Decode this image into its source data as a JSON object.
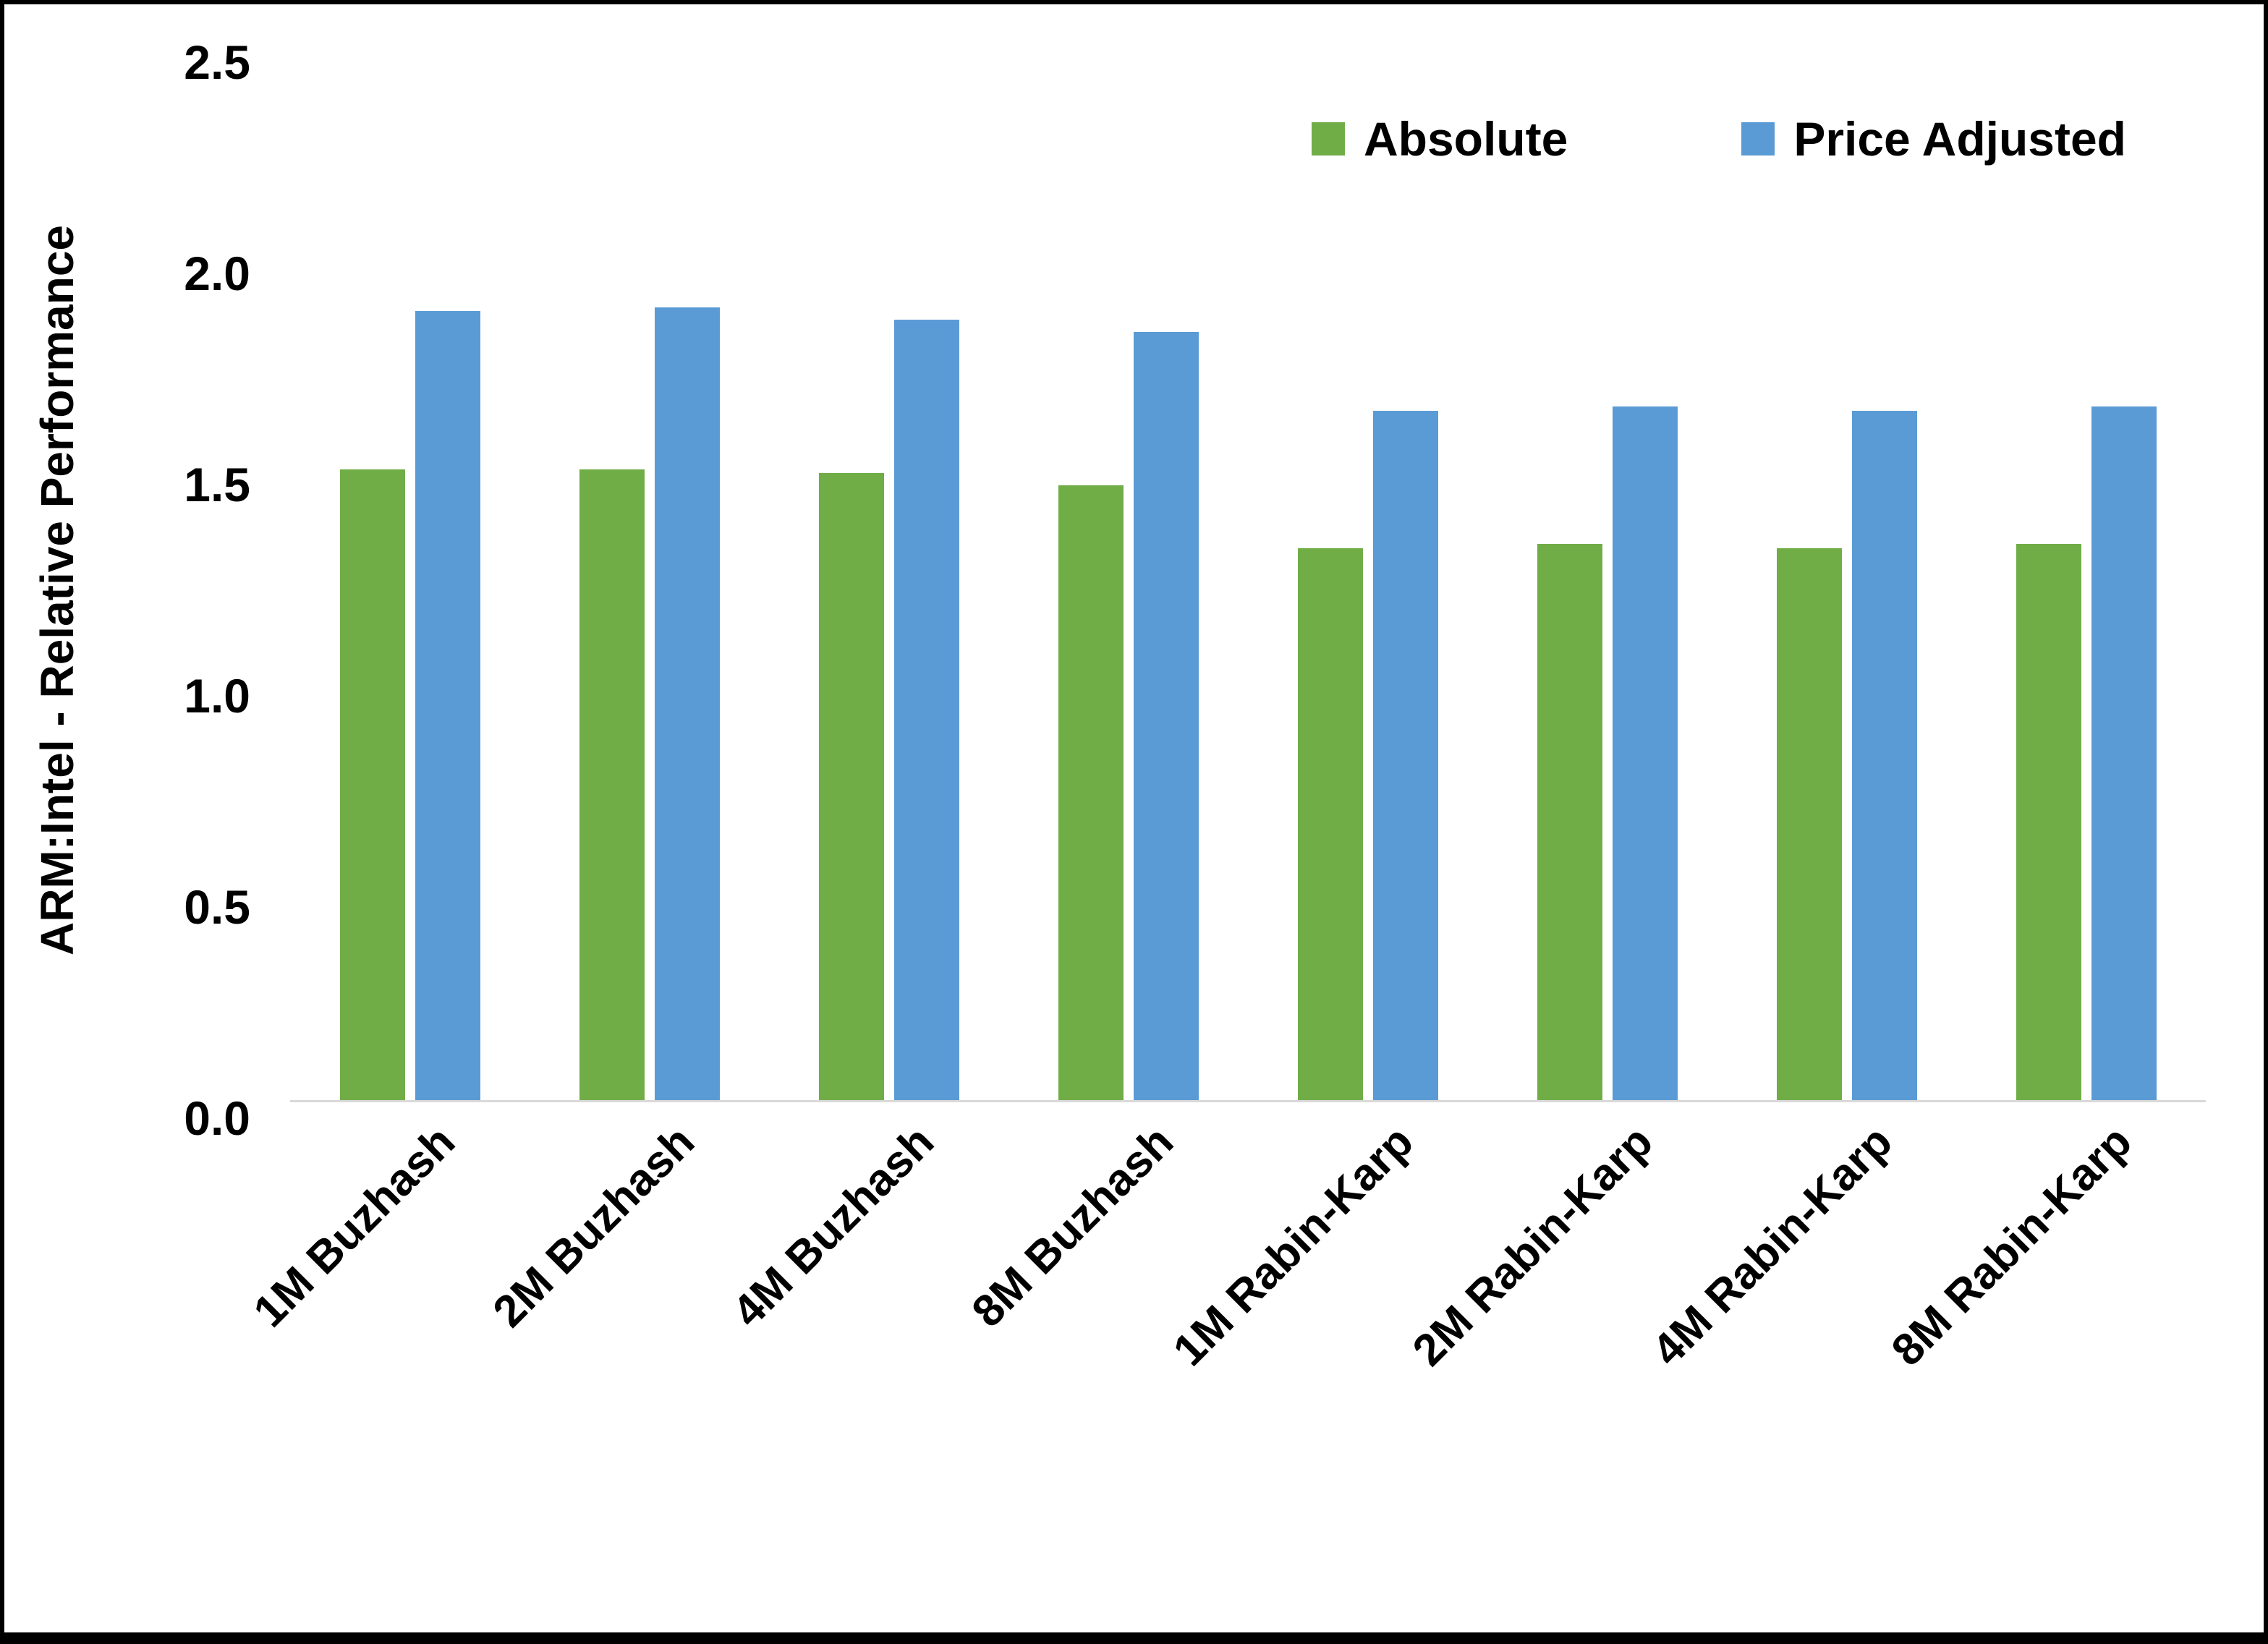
{
  "chart_data": {
    "type": "bar",
    "title": "",
    "ylabel": "ARM:Intel - Relative Performance",
    "xlabel": "",
    "ylim": [
      0,
      2.5
    ],
    "ytick_labels": [
      "0.0",
      "0.5",
      "1.0",
      "1.5",
      "2.0",
      "2.5"
    ],
    "grid": false,
    "legend_position": "top-right",
    "categories": [
      "1M Buzhash",
      "2M Buzhash",
      "4M Buzhash",
      "8M Buzhash",
      "1M Rabin-Karp",
      "2M Rabin-Karp",
      "4M Rabin-Karp",
      "8M Rabin-Karp"
    ],
    "series": [
      {
        "name": "Absolute",
        "color": "#70AD47",
        "values": [
          1.52,
          1.52,
          1.51,
          1.48,
          1.33,
          1.34,
          1.33,
          1.34
        ]
      },
      {
        "name": "Price Adjusted",
        "color": "#5B9BD5",
        "values": [
          1.9,
          1.91,
          1.88,
          1.85,
          1.66,
          1.67,
          1.66,
          1.67
        ]
      }
    ]
  },
  "colors": {
    "axis_line": "#d9d9d9",
    "frame": "#000000",
    "text": "#000000"
  }
}
